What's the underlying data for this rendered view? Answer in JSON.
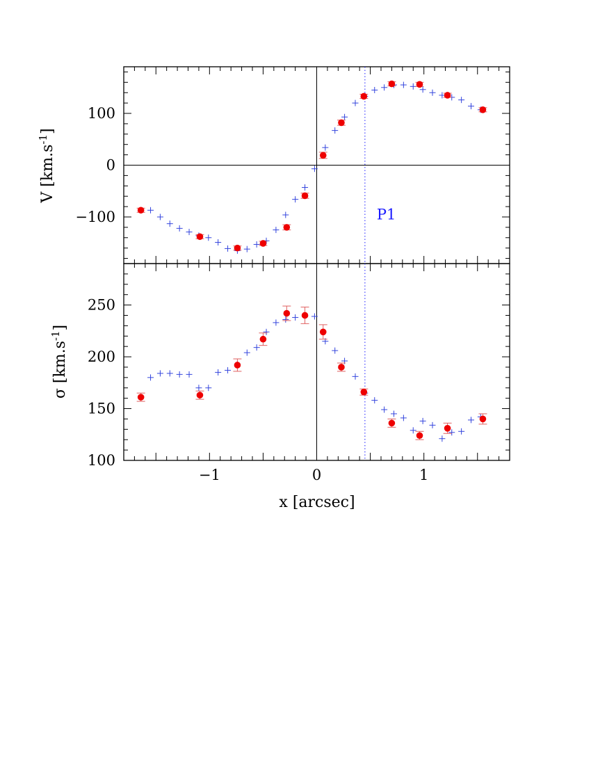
{
  "chart_data": [
    {
      "type": "scatter",
      "panel": "top",
      "xlabel": "x [arcsec]",
      "ylabel_main": "V  [km.s",
      "ylabel_sup": "-1",
      "ylabel_close": "]",
      "xlim": [
        -1.8,
        1.8
      ],
      "ylim": [
        -190,
        190
      ],
      "xticks": [
        -1,
        0,
        1
      ],
      "xtick_labels": [
        "−1",
        "0",
        "1"
      ],
      "yticks": [
        -100,
        0,
        100
      ],
      "ytick_labels": [
        "−100",
        "0",
        "100"
      ],
      "zero_lines": true,
      "vline": {
        "x": 0.45,
        "label": "P1",
        "label_y": -95,
        "color": "#1a1aff",
        "style": "dotted"
      },
      "series": [
        {
          "marker": "plus",
          "color": "#3344dd",
          "x": [
            -1.55,
            -1.46,
            -1.37,
            -1.28,
            -1.19,
            -1.1,
            -1.01,
            -0.92,
            -0.83,
            -0.74,
            -0.65,
            -0.56,
            -0.47,
            -0.38,
            -0.29,
            -0.2,
            -0.11,
            -0.02,
            0.08,
            0.17,
            0.26,
            0.36,
            0.45,
            0.54,
            0.63,
            0.72,
            0.81,
            0.9,
            0.99,
            1.08,
            1.17,
            1.26,
            1.35,
            1.44,
            1.53
          ],
          "y": [
            -87,
            -100,
            -113,
            -122,
            -129,
            -136,
            -140,
            -149,
            -161,
            -165,
            -162,
            -153,
            -146,
            -125,
            -96,
            -66,
            -43,
            -7,
            34,
            67,
            93,
            120,
            133,
            145,
            150,
            155,
            155,
            152,
            146,
            140,
            135,
            131,
            126,
            114,
            107
          ]
        },
        {
          "marker": "circle",
          "color": "#ee0000",
          "x": [
            -1.64,
            -1.09,
            -0.74,
            -0.5,
            -0.28,
            -0.11,
            0.06,
            0.23,
            0.44,
            0.7,
            0.96,
            1.22,
            1.55
          ],
          "y": [
            -87,
            -138,
            -160,
            -151,
            -120,
            -59,
            19,
            82,
            133,
            157,
            156,
            135,
            107
          ],
          "err": [
            4,
            4,
            4,
            4,
            5,
            5,
            6,
            5,
            4,
            4,
            4,
            4,
            4
          ]
        }
      ]
    },
    {
      "type": "scatter",
      "panel": "bottom",
      "xlabel": "x [arcsec]",
      "ylabel_main": "σ  [km.s",
      "ylabel_sup": "-1",
      "ylabel_close": "]",
      "xlim": [
        -1.8,
        1.8
      ],
      "ylim": [
        100,
        290
      ],
      "xticks": [
        -1,
        0,
        1
      ],
      "xtick_labels": [
        "−1",
        "0",
        "1"
      ],
      "yticks": [
        100,
        150,
        200,
        250
      ],
      "ytick_labels": [
        "100",
        "150",
        "200",
        "250"
      ],
      "zero_lines": true,
      "vline": {
        "x": 0.45,
        "color": "#1a1aff",
        "style": "dotted"
      },
      "series": [
        {
          "marker": "plus",
          "color": "#3344dd",
          "x": [
            -1.55,
            -1.46,
            -1.37,
            -1.28,
            -1.19,
            -1.1,
            -1.01,
            -0.92,
            -0.83,
            -0.74,
            -0.65,
            -0.56,
            -0.47,
            -0.38,
            -0.29,
            -0.2,
            -0.11,
            -0.02,
            0.08,
            0.17,
            0.26,
            0.36,
            0.45,
            0.54,
            0.63,
            0.72,
            0.81,
            0.9,
            0.99,
            1.08,
            1.17,
            1.26,
            1.35,
            1.44,
            1.53
          ],
          "y": [
            180,
            184,
            184,
            183,
            183,
            170,
            170,
            185,
            187,
            193,
            204,
            209,
            224,
            233,
            236,
            238,
            239,
            239,
            215,
            206,
            196,
            181,
            165,
            158,
            149,
            145,
            141,
            129,
            138,
            134,
            121,
            127,
            128,
            139,
            142
          ]
        },
        {
          "marker": "circle",
          "color": "#ee0000",
          "x": [
            -1.64,
            -1.09,
            -0.74,
            -0.5,
            -0.28,
            -0.11,
            0.06,
            0.23,
            0.44,
            0.7,
            0.96,
            1.22,
            1.55
          ],
          "y": [
            161,
            163,
            192,
            217,
            242,
            240,
            224,
            190,
            166,
            136,
            124,
            131,
            140
          ],
          "err": [
            4,
            4,
            6,
            6,
            7,
            8,
            7,
            4,
            3,
            4,
            4,
            5,
            5
          ]
        }
      ]
    }
  ]
}
